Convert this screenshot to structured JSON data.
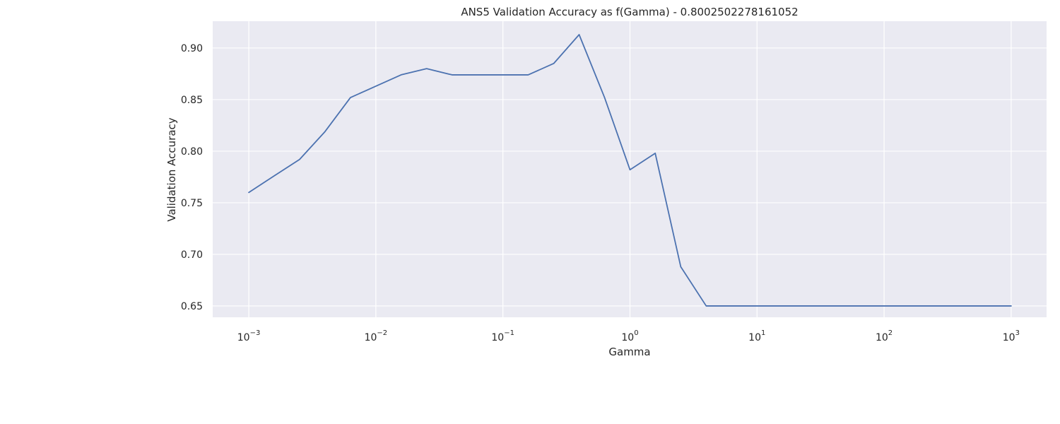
{
  "chart_data": {
    "type": "line",
    "title": "ANS5 Validation Accuracy as f(Gamma) - 0.8002502278161052",
    "xlabel": "Gamma",
    "ylabel": "Validation Accuracy",
    "xscale": "log",
    "xlim": [
      0.00052,
      1900
    ],
    "ylim": [
      0.639,
      0.926
    ],
    "grid": true,
    "legend": "none",
    "background_color": "#eaeaf2",
    "line_color": "#4c72b0",
    "grid_color": "#ffffff",
    "x_ticks": [
      {
        "value": 0.001,
        "base": "10",
        "exp": "−3"
      },
      {
        "value": 0.01,
        "base": "10",
        "exp": "−2"
      },
      {
        "value": 0.1,
        "base": "10",
        "exp": "−1"
      },
      {
        "value": 1,
        "base": "10",
        "exp": "0"
      },
      {
        "value": 10,
        "base": "10",
        "exp": "1"
      },
      {
        "value": 100,
        "base": "10",
        "exp": "2"
      },
      {
        "value": 1000,
        "base": "10",
        "exp": "3"
      }
    ],
    "y_ticks": [
      {
        "value": 0.65,
        "label": "0.65"
      },
      {
        "value": 0.7,
        "label": "0.70"
      },
      {
        "value": 0.75,
        "label": "0.75"
      },
      {
        "value": 0.8,
        "label": "0.80"
      },
      {
        "value": 0.85,
        "label": "0.85"
      },
      {
        "value": 0.9,
        "label": "0.90"
      }
    ],
    "series": [
      {
        "x": [
          0.001,
          0.00158,
          0.00251,
          0.00398,
          0.00631,
          0.01,
          0.0158,
          0.0251,
          0.0398,
          0.0631,
          0.1,
          0.158,
          0.251,
          0.398,
          0.631,
          1.0,
          1.58,
          2.51,
          3.98,
          6.31,
          10,
          15.8,
          25.1,
          39.8,
          63.1,
          100,
          158,
          251,
          398,
          631,
          1000
        ],
        "y": [
          0.76,
          0.776,
          0.792,
          0.819,
          0.852,
          0.863,
          0.874,
          0.88,
          0.874,
          0.874,
          0.874,
          0.874,
          0.885,
          0.913,
          0.852,
          0.782,
          0.798,
          0.688,
          0.65,
          0.65,
          0.65,
          0.65,
          0.65,
          0.65,
          0.65,
          0.65,
          0.65,
          0.65,
          0.65,
          0.65,
          0.65
        ]
      }
    ]
  }
}
